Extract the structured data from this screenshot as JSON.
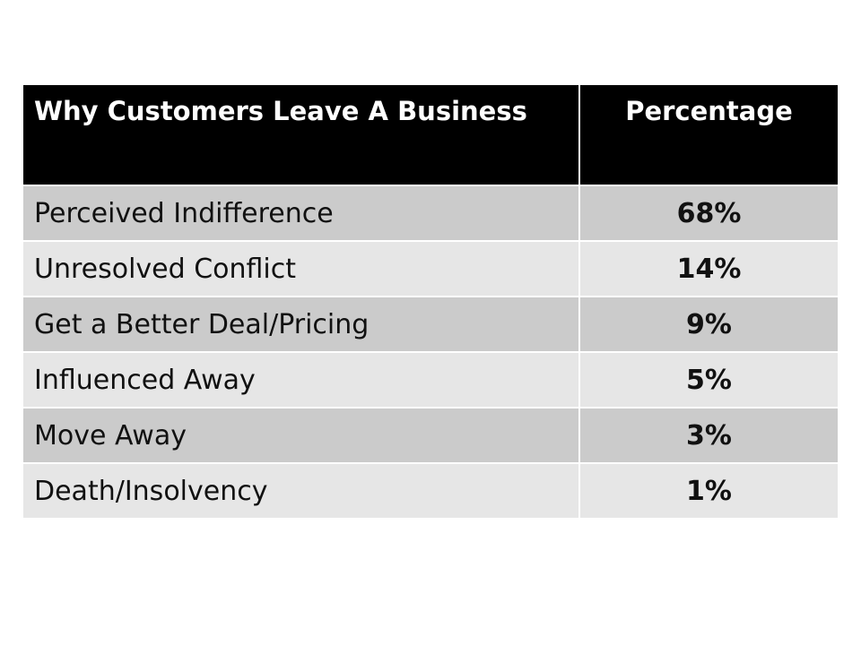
{
  "table": {
    "headers": [
      "Why Customers Leave A Business",
      "Percentage"
    ],
    "rows": [
      {
        "reason": "Perceived Indifference",
        "percentage": "68%"
      },
      {
        "reason": "Unresolved Conflict",
        "percentage": "14%"
      },
      {
        "reason": "Get a Better Deal/Pricing",
        "percentage": "9%"
      },
      {
        "reason": "Influenced Away",
        "percentage": "5%"
      },
      {
        "reason": "Move Away",
        "percentage": "3%"
      },
      {
        "reason": "Death/Insolvency",
        "percentage": "1%"
      }
    ]
  },
  "colors": {
    "header_bg": "#000000",
    "header_text": "#ffffff",
    "row_dark": "#cbcbcb",
    "row_light": "#e6e6e6"
  }
}
